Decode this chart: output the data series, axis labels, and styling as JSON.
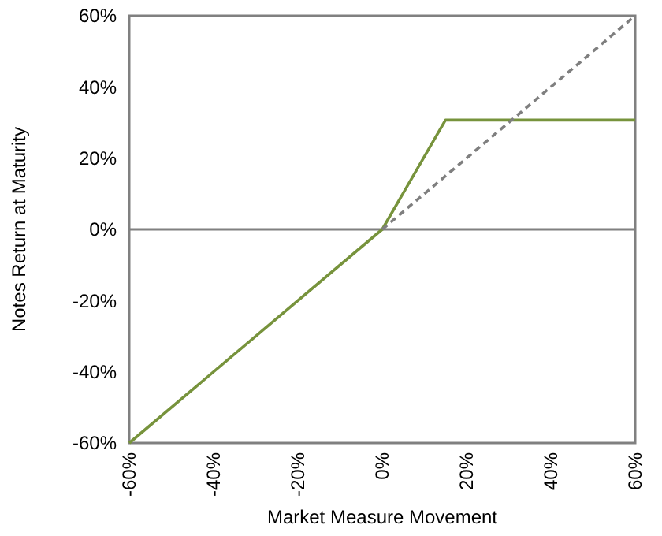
{
  "chart_data": {
    "type": "line",
    "xlabel": "Market Measure Movement",
    "ylabel": "Notes Return at Maturity",
    "series": [
      {
        "color": "#77933c",
        "x": [
          -60,
          0,
          15,
          60
        ],
        "values": [
          -60,
          0,
          30.7,
          30.7
        ],
        "line_style": "solid"
      },
      {
        "color": "#7f7f7f",
        "x": [
          0,
          60
        ],
        "values": [
          0,
          60
        ],
        "line_style": "dashed"
      }
    ],
    "xlim": [
      -60,
      60
    ],
    "ylim": [
      -60,
      60
    ],
    "xticks": [
      {
        "value": -60,
        "label": "-60%"
      },
      {
        "value": -40,
        "label": "-40%"
      },
      {
        "value": -20,
        "label": "-20%"
      },
      {
        "value": 0,
        "label": "0%"
      },
      {
        "value": 20,
        "label": "20%"
      },
      {
        "value": 40,
        "label": "40%"
      },
      {
        "value": 60,
        "label": "60%"
      }
    ],
    "yticks": [
      {
        "value": -60,
        "label": "-60%"
      },
      {
        "value": -40,
        "label": "-40%"
      },
      {
        "value": -20,
        "label": "-20%"
      },
      {
        "value": 0,
        "label": "0%"
      },
      {
        "value": 20,
        "label": "20%"
      },
      {
        "value": 40,
        "label": "40%"
      },
      {
        "value": 60,
        "label": "60%"
      }
    ],
    "ref_lines": [
      {
        "axis": "y",
        "value": 0,
        "color": "#808080"
      }
    ],
    "grid": false,
    "marker": "none"
  }
}
